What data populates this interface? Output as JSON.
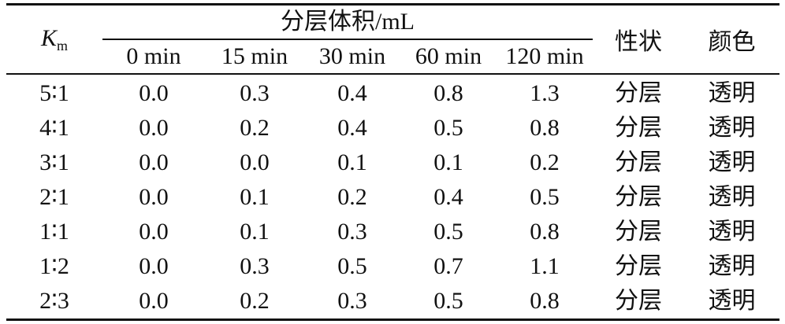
{
  "header": {
    "km_symbol": "K",
    "km_subscript": "m",
    "group_label": "分层体积/mL",
    "time_columns": [
      "0 min",
      "15 min",
      "30 min",
      "60 min",
      "120 min"
    ],
    "character_label": "性状",
    "color_label": "颜色"
  },
  "rows": [
    {
      "km": "5∶1",
      "values": [
        "0.0",
        "0.3",
        "0.4",
        "0.8",
        "1.3"
      ],
      "character": "分层",
      "color": "透明"
    },
    {
      "km": "4∶1",
      "values": [
        "0.0",
        "0.2",
        "0.4",
        "0.5",
        "0.8"
      ],
      "character": "分层",
      "color": "透明"
    },
    {
      "km": "3∶1",
      "values": [
        "0.0",
        "0.0",
        "0.1",
        "0.1",
        "0.2"
      ],
      "character": "分层",
      "color": "透明"
    },
    {
      "km": "2∶1",
      "values": [
        "0.0",
        "0.1",
        "0.2",
        "0.4",
        "0.5"
      ],
      "character": "分层",
      "color": "透明"
    },
    {
      "km": "1∶1",
      "values": [
        "0.0",
        "0.1",
        "0.3",
        "0.5",
        "0.8"
      ],
      "character": "分层",
      "color": "透明"
    },
    {
      "km": "1∶2",
      "values": [
        "0.0",
        "0.3",
        "0.5",
        "0.7",
        "1.1"
      ],
      "character": "分层",
      "color": "透明"
    },
    {
      "km": "2∶3",
      "values": [
        "0.0",
        "0.2",
        "0.3",
        "0.5",
        "0.8"
      ],
      "character": "分层",
      "color": "透明"
    }
  ]
}
